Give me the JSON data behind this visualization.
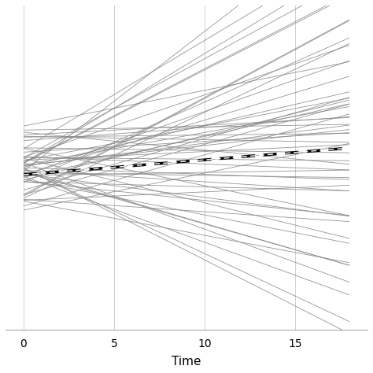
{
  "title": "",
  "xlabel": "Time",
  "ylabel": "",
  "xlim": [
    -1.0,
    19.0
  ],
  "ylim": [
    -3.5,
    3.5
  ],
  "x_ticks": [
    0,
    5,
    10,
    15
  ],
  "x_range": [
    0,
    18
  ],
  "background_color": "#ffffff",
  "grid_color": "#d0d0d0",
  "line_color": "#888888",
  "fixed_line_color": "#000000",
  "n_lines": 55,
  "intercept_mean": 0.0,
  "intercept_std": 0.4,
  "slope_mean": 0.03,
  "slope_std": 0.12,
  "fixed_intercept": -0.15,
  "fixed_slope": 0.032,
  "random_seed": 7
}
